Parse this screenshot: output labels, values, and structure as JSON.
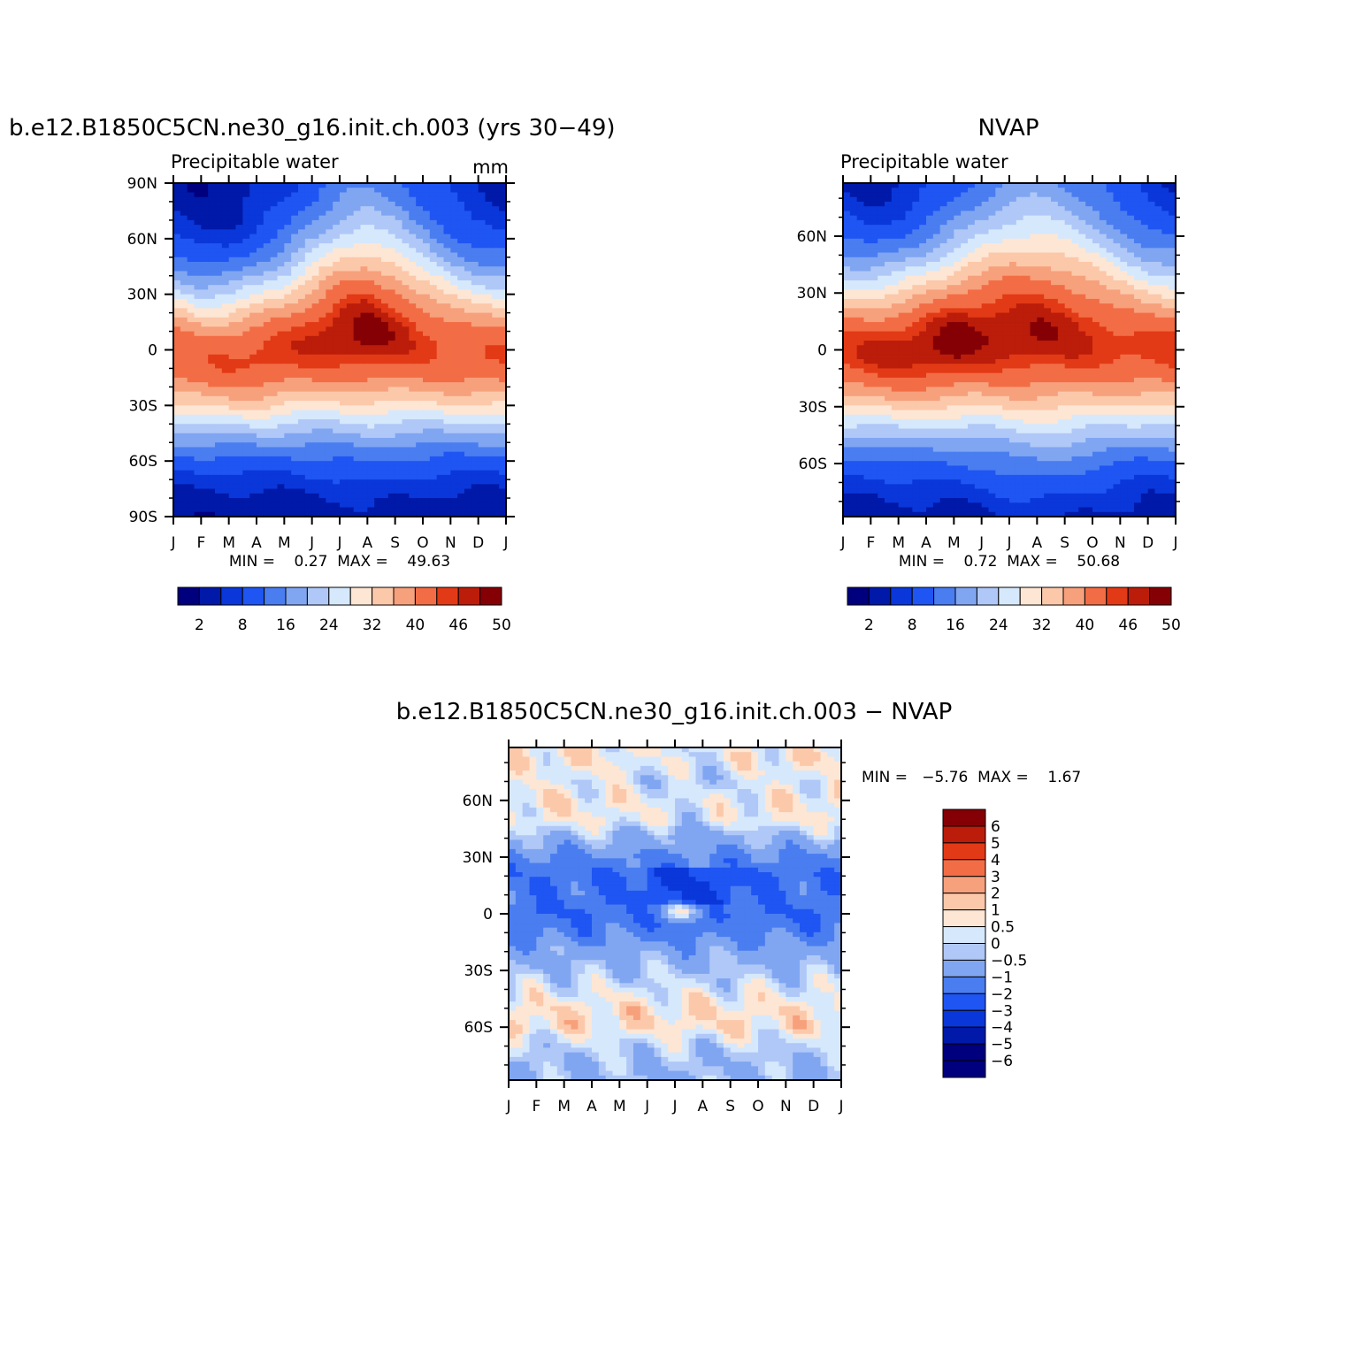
{
  "colors": {
    "abs_scale": [
      "#00007f",
      "#0019a8",
      "#0a37d9",
      "#1f55f2",
      "#4a7df0",
      "#80a6f2",
      "#b0c8f7",
      "#d6e8fc",
      "#fde6d4",
      "#fcc8aa",
      "#f7a07c",
      "#f26d45",
      "#e23a16",
      "#bb1d0a",
      "#850005"
    ],
    "diff_scale": [
      "#00007f",
      "#0019a8",
      "#0a37d9",
      "#1f55f2",
      "#4a7df0",
      "#80a6f2",
      "#b0c8f7",
      "#d6e8fc",
      "#fde6d4",
      "#fcc8aa",
      "#f7a07c",
      "#f26d45",
      "#e23a16",
      "#bb1d0a",
      "#850005"
    ]
  },
  "panels": {
    "model": {
      "title": "b.e12.B1850C5CN.ne30_g16.init.ch.003 (yrs 30−49)",
      "left_label": "Precipitable water",
      "right_label": "mm",
      "y_ticks": [
        "90N",
        "60N",
        "30N",
        "0",
        "30S",
        "60S",
        "90S"
      ],
      "x_ticks": [
        "J",
        "F",
        "M",
        "A",
        "M",
        "J",
        "J",
        "A",
        "S",
        "O",
        "N",
        "D",
        "J"
      ],
      "stats": "MIN =    0.27  MAX =    49.63",
      "colorbar_labels": [
        "2",
        "8",
        "16",
        "24",
        "32",
        "40",
        "46",
        "50"
      ]
    },
    "obs": {
      "title": "NVAP",
      "left_label": "Precipitable water",
      "y_ticks": [
        "60N",
        "30N",
        "0",
        "30S",
        "60S"
      ],
      "x_ticks": [
        "J",
        "F",
        "M",
        "A",
        "M",
        "J",
        "J",
        "A",
        "S",
        "O",
        "N",
        "D",
        "J"
      ],
      "stats": "MIN =    0.72  MAX =    50.68",
      "colorbar_labels": [
        "2",
        "8",
        "16",
        "24",
        "32",
        "40",
        "46",
        "50"
      ]
    },
    "diff": {
      "title": "b.e12.B1850C5CN.ne30_g16.init.ch.003 − NVAP",
      "y_ticks": [
        "60N",
        "30N",
        "0",
        "30S",
        "60S"
      ],
      "x_ticks": [
        "J",
        "F",
        "M",
        "A",
        "M",
        "J",
        "J",
        "A",
        "S",
        "O",
        "N",
        "D",
        "J"
      ],
      "stats": "MIN =   −5.76  MAX =    1.67",
      "colorbar_labels": [
        "6",
        "5",
        "4",
        "3",
        "2",
        "1",
        "0.5",
        "0",
        "−0.5",
        "−1",
        "−2",
        "−3",
        "−4",
        "−5",
        "−6"
      ]
    }
  },
  "chart_data": [
    {
      "type": "heatmap",
      "title": "b.e12.B1850C5CN.ne30_g16.init.ch.003 (yrs 30−49)",
      "subtitle": "Precipitable water",
      "units": "mm",
      "x_categories": [
        "J",
        "F",
        "M",
        "A",
        "M",
        "J",
        "J",
        "A",
        "S",
        "O",
        "N",
        "D",
        "J"
      ],
      "y_range": [
        -90,
        90
      ],
      "levels": [
        2,
        5,
        8,
        12,
        16,
        20,
        24,
        28,
        32,
        36,
        40,
        44,
        46,
        48,
        50
      ],
      "min": 0.27,
      "max": 49.63,
      "itcz_lat_by_month": [
        -3,
        -6,
        -6,
        -4,
        -1,
        4,
        8,
        9,
        7,
        3,
        -1,
        -3,
        -3
      ],
      "peak_by_month": [
        44,
        43,
        44,
        45,
        45,
        46,
        48,
        49,
        47,
        45,
        44,
        44,
        44
      ],
      "halfwidth_by_month": [
        24,
        23,
        23,
        24,
        25,
        27,
        29,
        30,
        29,
        27,
        25,
        24,
        24
      ],
      "south_pole_value": 1.5,
      "north_pole_winter": 2.0,
      "north_pole_summer": 10
    },
    {
      "type": "heatmap",
      "title": "NVAP",
      "subtitle": "Precipitable water",
      "x_categories": [
        "J",
        "F",
        "M",
        "A",
        "M",
        "J",
        "J",
        "A",
        "S",
        "O",
        "N",
        "D",
        "J"
      ],
      "y_range": [
        -90,
        90
      ],
      "levels": [
        2,
        5,
        8,
        12,
        16,
        20,
        24,
        28,
        32,
        36,
        40,
        44,
        46,
        48,
        50
      ],
      "min": 0.72,
      "max": 50.68,
      "itcz_lat_by_month": [
        -1,
        -2,
        -1,
        1,
        4,
        7,
        8,
        8,
        7,
        5,
        2,
        0,
        -1
      ],
      "peak_by_month": [
        45,
        46,
        47,
        48,
        49,
        48,
        48,
        48,
        47,
        46,
        45,
        45,
        45
      ],
      "halfwidth_by_month": [
        25,
        24,
        25,
        26,
        27,
        29,
        31,
        32,
        31,
        29,
        27,
        25,
        25
      ],
      "south_pole_value": 2.0,
      "north_pole_winter": 3.0,
      "north_pole_summer": 11
    },
    {
      "type": "heatmap",
      "title": "b.e12.B1850C5CN.ne30_g16.init.ch.003 − NVAP",
      "x_categories": [
        "J",
        "F",
        "M",
        "A",
        "M",
        "J",
        "J",
        "A",
        "S",
        "O",
        "N",
        "D",
        "J"
      ],
      "y_range": [
        -90,
        90
      ],
      "levels": [
        -6,
        -5,
        -4,
        -3,
        -2,
        -1,
        -0.5,
        0,
        0.5,
        1,
        2,
        3,
        4,
        5,
        6
      ],
      "min": -5.76,
      "max": 1.67,
      "zonal_profile_lat": [
        -80,
        -70,
        -60,
        -50,
        -40,
        -30,
        -20,
        -10,
        0,
        10,
        20,
        30,
        40,
        50,
        60,
        70,
        80
      ],
      "zonal_profile_value": [
        -1.0,
        -0.6,
        0.3,
        0.3,
        -0.3,
        -0.9,
        -1.4,
        -2.4,
        -3.0,
        -2.6,
        -2.8,
        -2.2,
        -1.0,
        0.1,
        0.2,
        -0.2,
        0.2
      ]
    }
  ]
}
